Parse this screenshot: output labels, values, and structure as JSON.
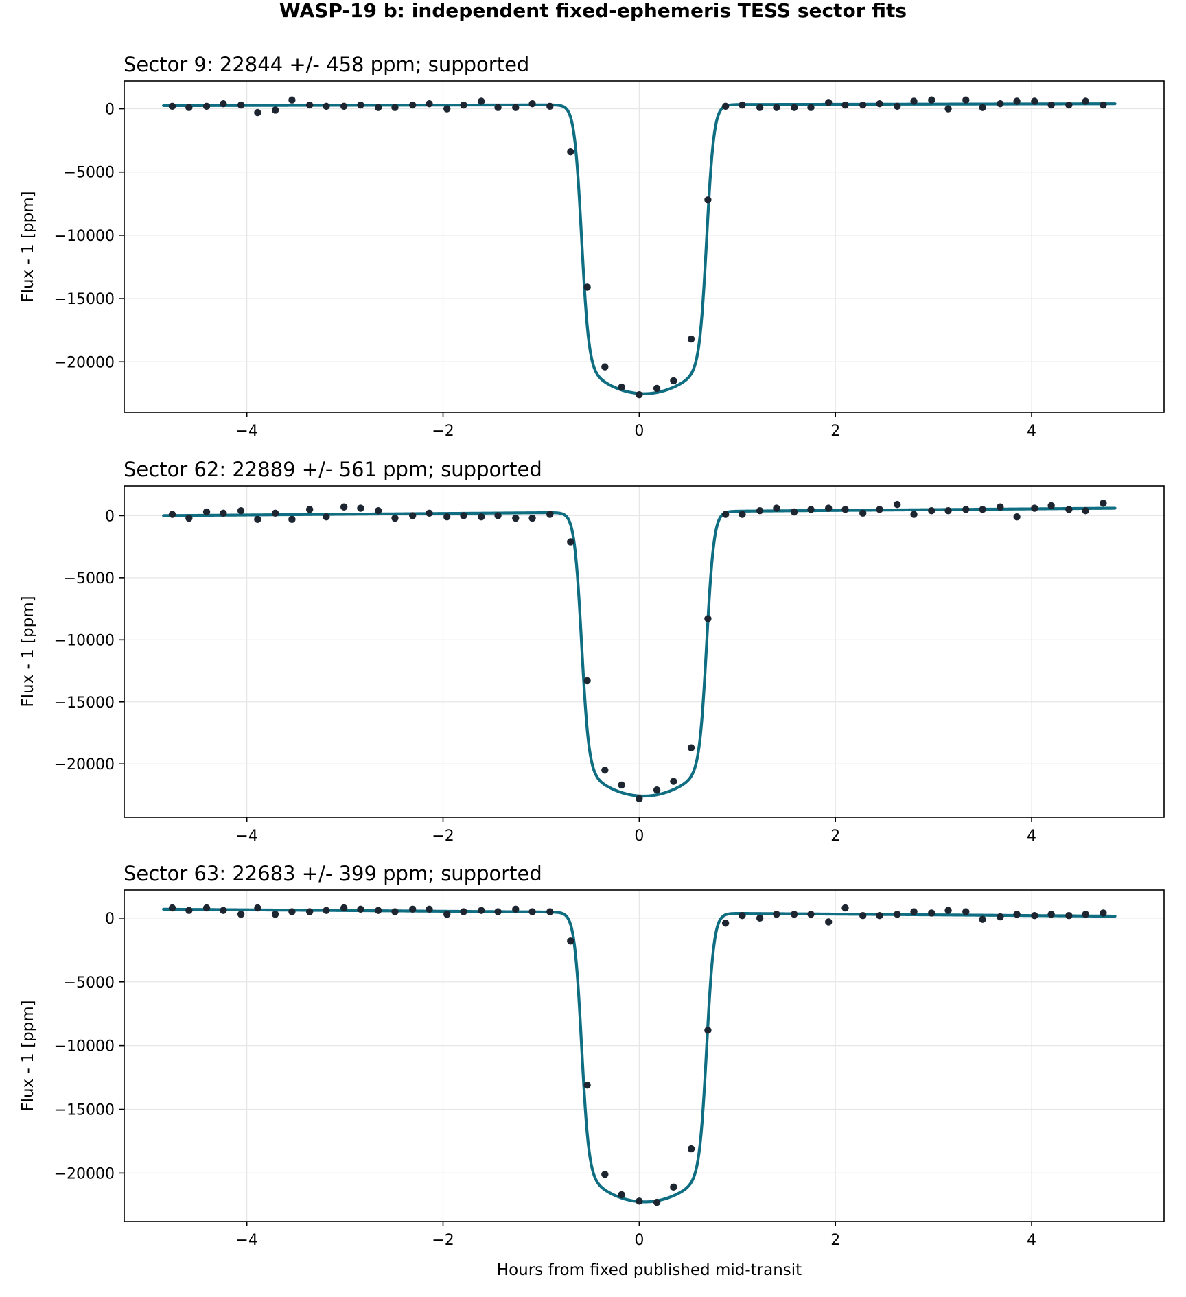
{
  "figure": {
    "title": "WASP-19 b: independent fixed-ephemeris TESS sector fits",
    "xlabel": "Hours from fixed published mid-transit",
    "ylabel": "Flux - 1 [ppm]"
  },
  "colors": {
    "model_line": "#0f6e82",
    "data_points": "#1c2530",
    "grid": "#e6e6e6",
    "axes": "#000000"
  },
  "chart_data": [
    {
      "type": "scatter",
      "title": "Sector 9: 22844 +/- 458 ppm; supported",
      "ylabel": "Flux - 1 [ppm]",
      "xlim": [
        -5.25,
        5.35
      ],
      "ylim": [
        -24000,
        2200
      ],
      "xticks": [
        -4,
        -2,
        0,
        2,
        4
      ],
      "xtick_labels": [
        "−4",
        "−2",
        "0",
        "2",
        "4"
      ],
      "yticks": [
        0,
        -5000,
        -10000,
        -15000,
        -20000
      ],
      "ytick_labels": [
        "0",
        "−5000",
        "−10000",
        "−15000",
        "−20000"
      ],
      "grid": true,
      "series": [
        {
          "kind": "points",
          "x": [
            -4.76,
            -4.59,
            -4.41,
            -4.24,
            -4.06,
            -3.89,
            -3.71,
            -3.54,
            -3.36,
            -3.19,
            -3.01,
            -2.84,
            -2.66,
            -2.49,
            -2.31,
            -2.14,
            -1.96,
            -1.79,
            -1.61,
            -1.44,
            -1.26,
            -1.09,
            -0.91,
            -0.7,
            -0.53,
            -0.35,
            -0.18,
            0.0,
            0.18,
            0.35,
            0.53,
            0.7,
            0.88,
            1.05,
            1.23,
            1.4,
            1.58,
            1.75,
            1.93,
            2.1,
            2.28,
            2.45,
            2.63,
            2.8,
            2.98,
            3.15,
            3.33,
            3.5,
            3.68,
            3.85,
            4.03,
            4.2,
            4.38,
            4.55,
            4.73
          ],
          "y": [
            200,
            100,
            200,
            400,
            300,
            -300,
            -100,
            700,
            300,
            200,
            200,
            300,
            100,
            100,
            300,
            400,
            0,
            300,
            600,
            100,
            100,
            400,
            200,
            -3400,
            -14100,
            -20400,
            -22000,
            -22600,
            -22100,
            -21500,
            -18200,
            -7200,
            200,
            300,
            100,
            100,
            100,
            100,
            500,
            300,
            300,
            400,
            200,
            600,
            700,
            0,
            700,
            100,
            400,
            600,
            600,
            300,
            300,
            600,
            300
          ]
        },
        {
          "kind": "model",
          "baseline_left": 250,
          "baseline_right": 400,
          "depth": 22844,
          "center": 0.05,
          "half_width": 0.82,
          "limb_curvature": 0.11
        }
      ]
    },
    {
      "type": "scatter",
      "title": "Sector 62: 22889 +/- 561 ppm; supported",
      "ylabel": "Flux - 1 [ppm]",
      "xlim": [
        -5.25,
        5.35
      ],
      "ylim": [
        -24300,
        2400
      ],
      "xticks": [
        -4,
        -2,
        0,
        2,
        4
      ],
      "xtick_labels": [
        "−4",
        "−2",
        "0",
        "2",
        "4"
      ],
      "yticks": [
        0,
        -5000,
        -10000,
        -15000,
        -20000
      ],
      "ytick_labels": [
        "0",
        "−5000",
        "−10000",
        "−15000",
        "−20000"
      ],
      "grid": true,
      "series": [
        {
          "kind": "points",
          "x": [
            -4.76,
            -4.59,
            -4.41,
            -4.24,
            -4.06,
            -3.89,
            -3.71,
            -3.54,
            -3.36,
            -3.19,
            -3.01,
            -2.84,
            -2.66,
            -2.49,
            -2.31,
            -2.14,
            -1.96,
            -1.79,
            -1.61,
            -1.44,
            -1.26,
            -1.09,
            -0.91,
            -0.7,
            -0.53,
            -0.35,
            -0.18,
            0.0,
            0.18,
            0.35,
            0.53,
            0.7,
            0.88,
            1.05,
            1.23,
            1.4,
            1.58,
            1.75,
            1.93,
            2.1,
            2.28,
            2.45,
            2.63,
            2.8,
            2.98,
            3.15,
            3.33,
            3.5,
            3.68,
            3.85,
            4.03,
            4.2,
            4.38,
            4.55,
            4.73
          ],
          "y": [
            100,
            -200,
            300,
            200,
            400,
            -300,
            200,
            -300,
            500,
            -100,
            700,
            600,
            400,
            -200,
            0,
            200,
            -100,
            0,
            -100,
            0,
            -200,
            -200,
            100,
            -2100,
            -13300,
            -20500,
            -21700,
            -22800,
            -22100,
            -21400,
            -18700,
            -8300,
            100,
            100,
            400,
            600,
            300,
            500,
            600,
            500,
            200,
            500,
            900,
            100,
            400,
            400,
            500,
            500,
            700,
            -100,
            600,
            800,
            500,
            400,
            1000
          ]
        },
        {
          "kind": "model",
          "baseline_left": 0,
          "baseline_right": 600,
          "depth": 22889,
          "center": 0.05,
          "half_width": 0.82,
          "limb_curvature": 0.11
        }
      ]
    },
    {
      "type": "scatter",
      "title": "Sector 63: 22683 +/- 399 ppm; supported",
      "ylabel": "Flux - 1 [ppm]",
      "xlim": [
        -5.25,
        5.35
      ],
      "ylim": [
        -23800,
        2200
      ],
      "xticks": [
        -4,
        -2,
        0,
        2,
        4
      ],
      "xtick_labels": [
        "−4",
        "−2",
        "0",
        "2",
        "4"
      ],
      "yticks": [
        0,
        -5000,
        -10000,
        -15000,
        -20000
      ],
      "ytick_labels": [
        "0",
        "−5000",
        "−10000",
        "−15000",
        "−20000"
      ],
      "grid": true,
      "series": [
        {
          "kind": "points",
          "x": [
            -4.76,
            -4.59,
            -4.41,
            -4.24,
            -4.06,
            -3.89,
            -3.71,
            -3.54,
            -3.36,
            -3.19,
            -3.01,
            -2.84,
            -2.66,
            -2.49,
            -2.31,
            -2.14,
            -1.96,
            -1.79,
            -1.61,
            -1.44,
            -1.26,
            -1.09,
            -0.91,
            -0.7,
            -0.53,
            -0.35,
            -0.18,
            0.0,
            0.18,
            0.35,
            0.53,
            0.7,
            0.88,
            1.05,
            1.23,
            1.4,
            1.58,
            1.75,
            1.93,
            2.1,
            2.28,
            2.45,
            2.63,
            2.8,
            2.98,
            3.15,
            3.33,
            3.5,
            3.68,
            3.85,
            4.03,
            4.2,
            4.38,
            4.55,
            4.73
          ],
          "y": [
            800,
            600,
            800,
            600,
            300,
            800,
            300,
            500,
            500,
            600,
            800,
            700,
            600,
            500,
            700,
            700,
            300,
            500,
            600,
            500,
            700,
            500,
            500,
            -1800,
            -13100,
            -20100,
            -21700,
            -22200,
            -22300,
            -21100,
            -18100,
            -8800,
            -400,
            200,
            0,
            300,
            300,
            300,
            -300,
            800,
            200,
            200,
            300,
            500,
            400,
            600,
            500,
            -100,
            100,
            300,
            200,
            300,
            200,
            300,
            400
          ]
        },
        {
          "kind": "model",
          "baseline_left": 700,
          "baseline_right": 150,
          "depth": 22683,
          "center": 0.05,
          "half_width": 0.82,
          "limb_curvature": 0.11
        }
      ]
    }
  ]
}
